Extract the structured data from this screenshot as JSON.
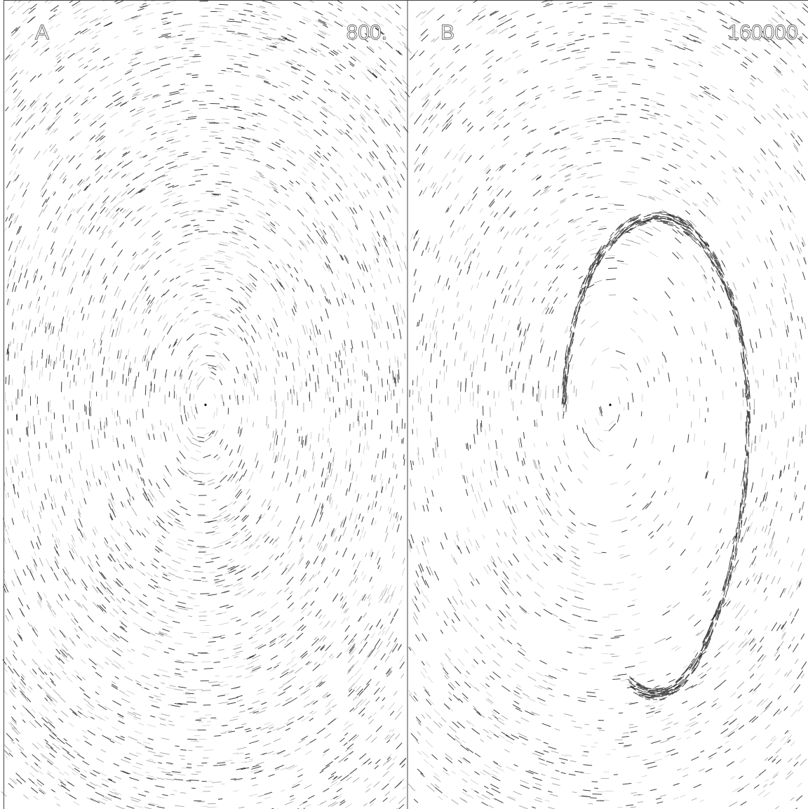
{
  "panels": [
    {
      "label": "A",
      "value": "800."
    },
    {
      "label": "B",
      "value": "160000."
    }
  ]
}
